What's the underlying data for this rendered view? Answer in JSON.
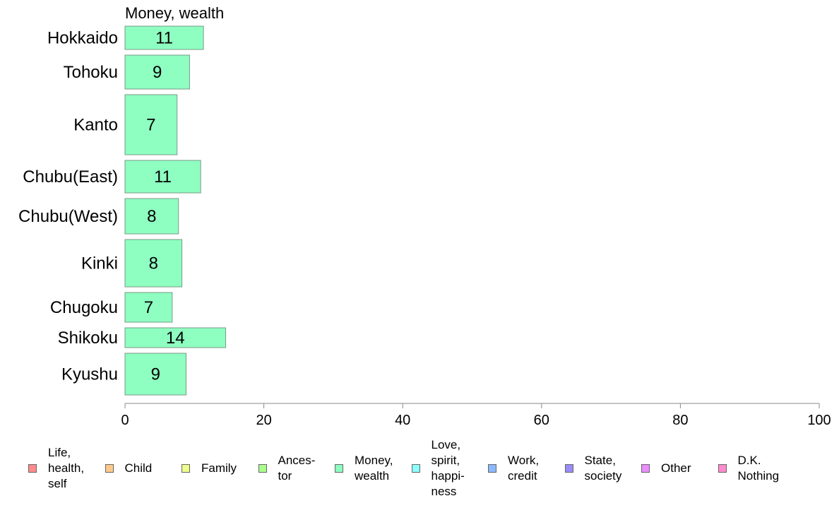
{
  "chart_data": {
    "type": "bar",
    "orientation": "horizontal",
    "panel_title": "Money, wealth",
    "categories": [
      "Hokkaido",
      "Tohoku",
      "Kanto",
      "Chubu(East)",
      "Chubu(West)",
      "Kinki",
      "Chugoku",
      "Shikoku",
      "Kyushu"
    ],
    "series": [
      {
        "name": "Money, wealth",
        "values": [
          11.3,
          9.3,
          7.5,
          10.9,
          7.7,
          8.2,
          6.8,
          14.5,
          8.8
        ],
        "labels": [
          "11",
          "9",
          "7",
          "11",
          "8",
          "8",
          "7",
          "14",
          "9"
        ]
      }
    ],
    "bar_color": "#8effc1",
    "xlim": [
      0,
      100
    ],
    "xticks": [
      "0",
      "20",
      "40",
      "60",
      "80",
      "100"
    ],
    "legend_position": "bottom",
    "legend": [
      {
        "label": "Life,\nhealth,\nself",
        "color": "#ff8c8c"
      },
      {
        "label": "Child",
        "color": "#ffc98c"
      },
      {
        "label": "Family",
        "color": "#eeff8c"
      },
      {
        "label": "Ances-\ntor",
        "color": "#a9ff8c"
      },
      {
        "label": "Money,\nwealth",
        "color": "#8effc1"
      },
      {
        "label": "Love,\nspirit,\nhappi-\nness",
        "color": "#8cffff"
      },
      {
        "label": "Work,\ncredit",
        "color": "#8cb8ff"
      },
      {
        "label": "State,\nsociety",
        "color": "#9a8cff"
      },
      {
        "label": "Other",
        "color": "#ec8cff"
      },
      {
        "label": "D.K.\nNothing",
        "color": "#ff8ccf"
      }
    ]
  }
}
